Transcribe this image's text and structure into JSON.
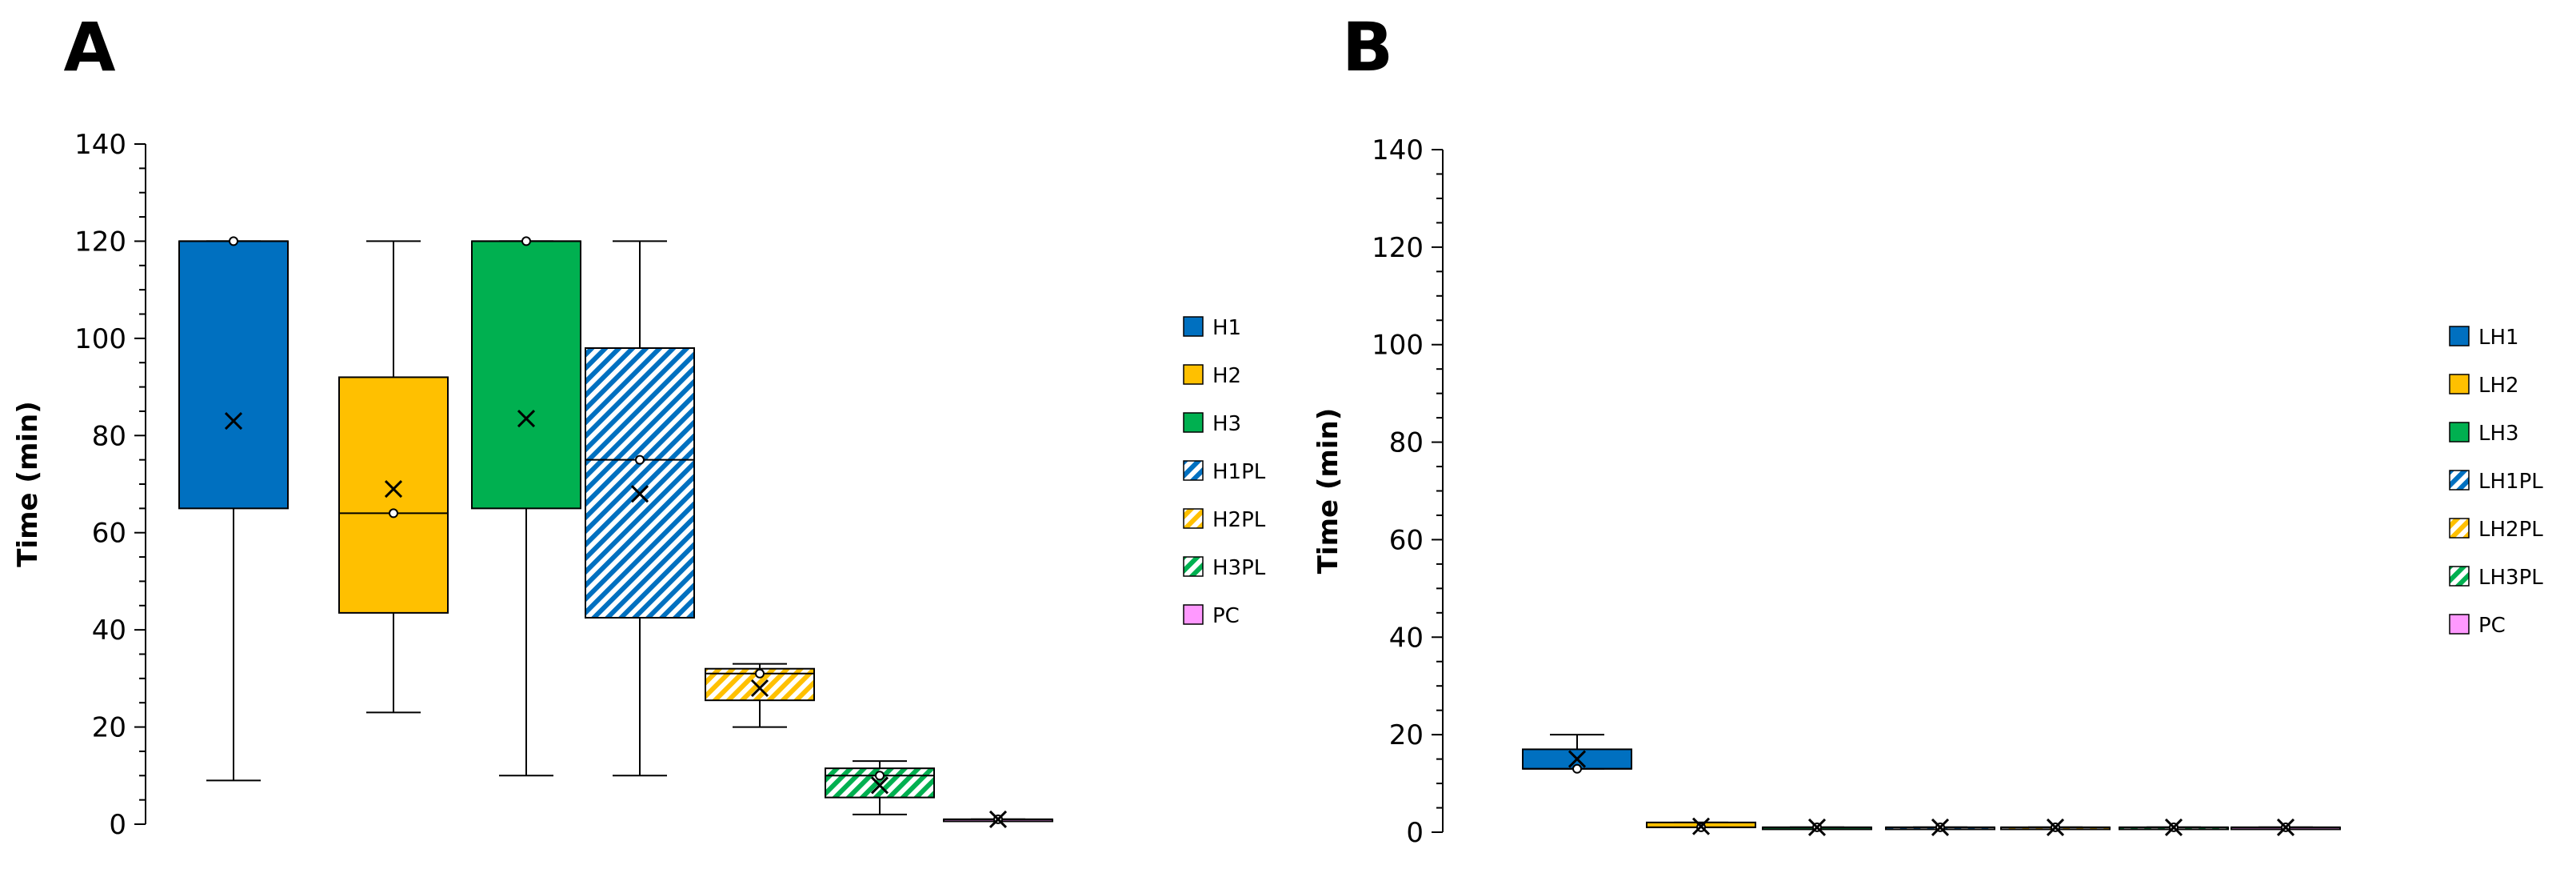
{
  "chart_data": [
    {
      "type": "box",
      "panel": "A",
      "ylabel": "Time (min)",
      "ylim": [
        0,
        140
      ],
      "yticks": [
        0,
        20,
        40,
        60,
        80,
        100,
        120,
        140
      ],
      "legend_position": "right",
      "series": [
        {
          "name": "H1",
          "color": "#0070C0",
          "pattern": "solid",
          "min": 9,
          "q1": 65,
          "median": 120,
          "q3": 120,
          "max": 120,
          "mean": 83
        },
        {
          "name": "H2",
          "color": "#FFC000",
          "pattern": "solid",
          "min": 23,
          "q1": 43.5,
          "median": 64,
          "q3": 92,
          "max": 120,
          "mean": 69
        },
        {
          "name": "H3",
          "color": "#00B050",
          "pattern": "solid",
          "min": 10,
          "q1": 65,
          "median": 120,
          "q3": 120,
          "max": 120,
          "mean": 83.5
        },
        {
          "name": "H1PL",
          "color": "#0070C0",
          "pattern": "hatched",
          "min": 10,
          "q1": 42.5,
          "median": 75,
          "q3": 98,
          "max": 120,
          "mean": 68
        },
        {
          "name": "H2PL",
          "color": "#FFC000",
          "pattern": "hatched",
          "min": 20,
          "q1": 25.5,
          "median": 31,
          "q3": 32,
          "max": 33,
          "mean": 28
        },
        {
          "name": "H3PL",
          "color": "#00B050",
          "pattern": "hatched",
          "min": 2,
          "q1": 5.5,
          "median": 10,
          "q3": 11.5,
          "max": 13,
          "mean": 8
        },
        {
          "name": "PC",
          "color": "#FF99FF",
          "pattern": "solid",
          "min": 1,
          "q1": 1,
          "median": 1,
          "q3": 1,
          "max": 1,
          "mean": 1
        }
      ]
    },
    {
      "type": "box",
      "panel": "B",
      "ylabel": "Time (min)",
      "ylim": [
        0,
        140
      ],
      "yticks": [
        0,
        20,
        40,
        60,
        80,
        100,
        120,
        140
      ],
      "legend_position": "right",
      "series": [
        {
          "name": "LH1",
          "color": "#0070C0",
          "pattern": "solid",
          "min": 13,
          "q1": 13,
          "median": 13,
          "q3": 17,
          "max": 20,
          "mean": 15
        },
        {
          "name": "LH2",
          "color": "#FFC000",
          "pattern": "solid",
          "min": 1,
          "q1": 1,
          "median": 1,
          "q3": 2,
          "max": 2,
          "mean": 1.2
        },
        {
          "name": "LH3",
          "color": "#00B050",
          "pattern": "solid",
          "min": 1,
          "q1": 1,
          "median": 1,
          "q3": 1,
          "max": 1,
          "mean": 1
        },
        {
          "name": "LH1PL",
          "color": "#0070C0",
          "pattern": "hatched",
          "min": 1,
          "q1": 1,
          "median": 1,
          "q3": 1,
          "max": 1,
          "mean": 1
        },
        {
          "name": "LH2PL",
          "color": "#FFC000",
          "pattern": "hatched",
          "min": 1,
          "q1": 1,
          "median": 1,
          "q3": 1,
          "max": 1,
          "mean": 1
        },
        {
          "name": "LH3PL",
          "color": "#00B050",
          "pattern": "hatched",
          "min": 1,
          "q1": 1,
          "median": 1,
          "q3": 1,
          "max": 1,
          "mean": 1
        },
        {
          "name": "PC",
          "color": "#FF99FF",
          "pattern": "solid",
          "min": 1,
          "q1": 1,
          "median": 1,
          "q3": 1,
          "max": 1,
          "mean": 1
        }
      ]
    }
  ]
}
